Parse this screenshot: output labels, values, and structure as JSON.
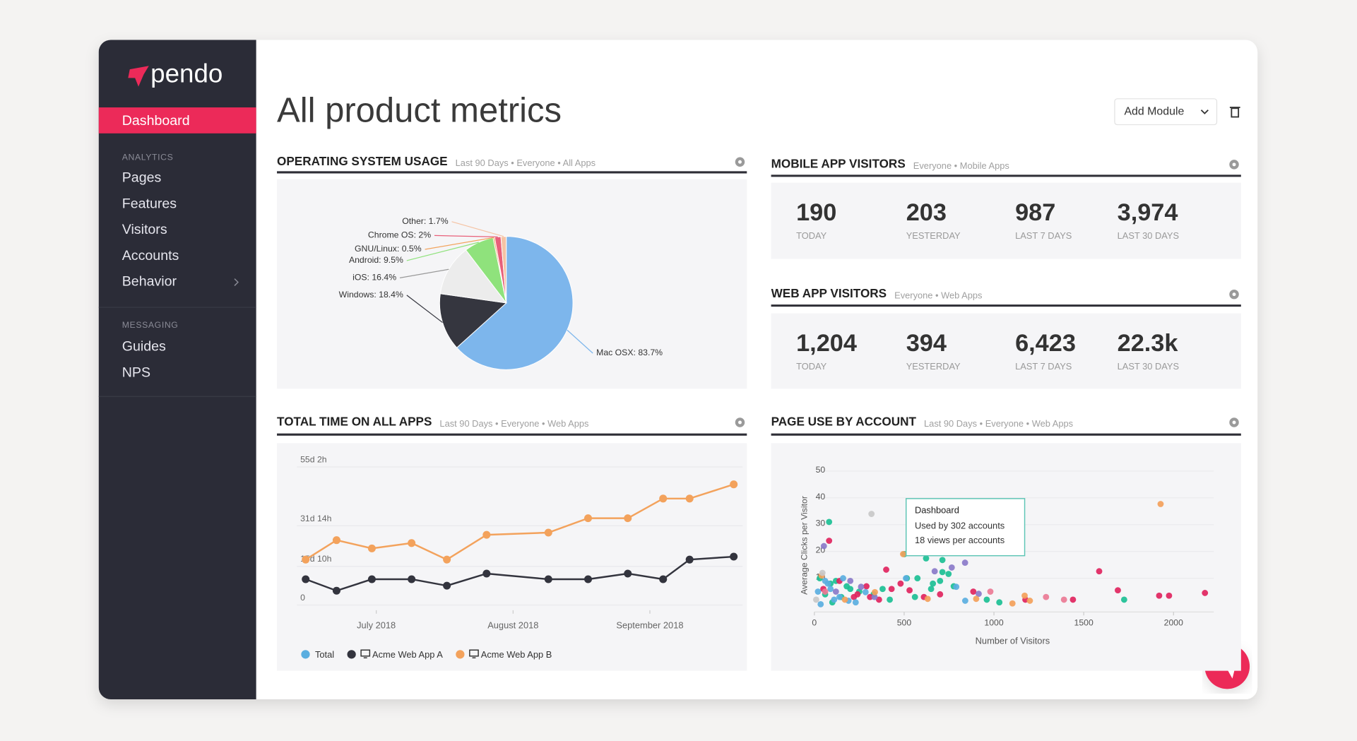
{
  "sidebar": {
    "logo": "pendo",
    "active": "Dashboard",
    "sections": [
      {
        "heading": "ANALYTICS",
        "items": [
          "Pages",
          "Features",
          "Visitors",
          "Accounts",
          "Behavior"
        ]
      },
      {
        "heading": "MESSAGING",
        "items": [
          "Guides",
          "NPS"
        ]
      }
    ]
  },
  "header": {
    "title": "All product metrics",
    "add_module": "Add Module"
  },
  "os_usage": {
    "title": "OPERATING SYSTEM USAGE",
    "subtitle": "Last 90 Days • Everyone • All Apps",
    "chart": {
      "type": "pie",
      "values": [
        83.7,
        18.4,
        16.4,
        9.5,
        0.5,
        2,
        1.7
      ],
      "value_labels": [
        "Mac OSX: 83.7%",
        "Windows: 18.4%",
        "iOS: 16.4%",
        "Android: 9.5%",
        "GNU/Linux: 0.5%",
        "Chrome OS: 2%",
        "Other: 1.7%"
      ],
      "colors": [
        "#7db6ec",
        "#35363f",
        "#ececec",
        "#8fe27c",
        "#f2a45e",
        "#e8607a",
        "#f5c3a4"
      ]
    }
  },
  "mobile_visitors": {
    "title": "MOBILE APP VISITORS",
    "subtitle": "Everyone • Mobile Apps",
    "stats": [
      {
        "value": "190",
        "label": "TODAY"
      },
      {
        "value": "203",
        "label": "YESTERDAY"
      },
      {
        "value": "987",
        "label": "LAST 7 DAYS"
      },
      {
        "value": "3,974",
        "label": "LAST 30 DAYS"
      }
    ]
  },
  "web_visitors": {
    "title": "WEB APP VISITORS",
    "subtitle": "Everyone • Web Apps",
    "stats": [
      {
        "value": "1,204",
        "label": "TODAY"
      },
      {
        "value": "394",
        "label": "YESTERDAY"
      },
      {
        "value": "6,423",
        "label": "LAST 7 DAYS"
      },
      {
        "value": "22.3k",
        "label": "LAST 30 DAYS"
      }
    ]
  },
  "total_time": {
    "title": "TOTAL TIME ON ALL APPS",
    "subtitle": "Last 90 Days • Everyone • Web Apps",
    "chart": {
      "type": "line",
      "x": [
        166,
        173,
        181,
        190,
        198,
        207,
        221,
        230,
        239,
        247,
        253,
        263
      ],
      "xlim": [
        164,
        265
      ],
      "xticks": [
        {
          "value": 182,
          "label": "July 2018"
        },
        {
          "value": 213,
          "label": "August 2018"
        },
        {
          "value": 244,
          "label": "September 2018"
        }
      ],
      "ylim": [
        0,
        1400
      ],
      "yticks": [
        0,
        {
          "value": 370,
          "label": "15d 10h"
        },
        {
          "value": 758,
          "label": "31d 14h"
        },
        {
          "value": 1322,
          "label": "55d 2h"
        }
      ],
      "grid": true,
      "series": [
        {
          "name": "Total",
          "color": "#5aaee0",
          "values": [
            null,
            null,
            null,
            null,
            null,
            null,
            null,
            null,
            null,
            null,
            null,
            null
          ]
        },
        {
          "name": "Acme Web App A",
          "color": "#33343e",
          "values": [
            247,
            137,
            247,
            247,
            185,
            301,
            247,
            247,
            301,
            247,
            435,
            463
          ]
        },
        {
          "name": "Acme Web App B",
          "color": "#f3a25c",
          "values": [
            435,
            621,
            542,
            593,
            435,
            672,
            693,
            831,
            831,
            1019,
            1019,
            1155
          ]
        }
      ]
    }
  },
  "page_use": {
    "title": "PAGE USE BY ACCOUNT",
    "subtitle": "Last 90 Days • Everyone • Web Apps",
    "chart": {
      "type": "scatter",
      "xlabel": "Number of Visitors",
      "ylabel": "Average Clicks per Visitor",
      "xlim": [
        0,
        2200
      ],
      "xticks": [
        0,
        500,
        1000,
        1500,
        2000
      ],
      "ylim": [
        0,
        52
      ],
      "yticks": [
        10,
        20,
        30,
        40,
        50
      ],
      "grid": true,
      "series": [
        {
          "color": "#1bbf94",
          "x": [
            82,
            713,
            713,
            747,
            622,
            501,
            574,
            515,
            660,
            776,
            960,
            1030,
            1725,
            60,
            90,
            120,
            150,
            200,
            250,
            330,
            420,
            380,
            30,
            100,
            180,
            560,
            650,
            700
          ],
          "values": [
            31,
            16.8,
            12.3,
            11.6,
            17.4,
            19,
            10,
            10,
            8,
            7,
            2,
            1,
            2,
            4,
            8,
            9,
            3,
            6,
            5,
            4,
            2,
            6,
            10,
            1,
            7,
            3,
            6,
            9
          ]
        },
        {
          "color": "#e0245e",
          "x": [
            82,
            1586,
            400,
            530,
            610,
            885,
            1175,
            1440,
            1690,
            1920,
            1975,
            2175,
            310,
            240,
            430,
            50,
            140,
            220,
            290,
            360,
            480,
            700
          ],
          "values": [
            24,
            12.6,
            13.2,
            5.5,
            3,
            5,
            2,
            2,
            5.5,
            3.5,
            3.5,
            4.5,
            3,
            4,
            6,
            6,
            9,
            3,
            7,
            2,
            8,
            4
          ]
        },
        {
          "color": "#5aaee0",
          "x": [
            140,
            190,
            285,
            510,
            790,
            35,
            90,
            840,
            60,
            110,
            160,
            230,
            20,
            75
          ],
          "values": [
            3,
            1.6,
            4.8,
            10,
            6.8,
            0.3,
            6,
            1.6,
            9,
            2,
            10,
            1,
            5,
            8
          ]
        },
        {
          "color": "#8a79c9",
          "x": [
            53,
            839,
            915,
            335,
            260,
            670,
            765,
            120,
            200
          ],
          "values": [
            22,
            15.8,
            4.2,
            3,
            6.8,
            12.6,
            14,
            5,
            9
          ]
        },
        {
          "color": "#f3a05a",
          "x": [
            1928,
            494,
            1171,
            1200,
            1103,
            901,
            631,
            337,
            170,
            40
          ],
          "values": [
            37.7,
            19,
            3.5,
            1.6,
            0.6,
            2.3,
            2.3,
            4.8,
            2,
            11
          ]
        },
        {
          "color": "#c8c8c8",
          "x": [
            318,
            10,
            45
          ],
          "values": [
            34,
            2,
            12
          ]
        },
        {
          "color": "#ea7a95",
          "x": [
            1390,
            1290,
            980,
            60
          ],
          "values": [
            2,
            3,
            5,
            5
          ]
        }
      ],
      "tooltip": {
        "title": "Dashboard",
        "lines": [
          "Used by 302 accounts",
          "18 views per accounts"
        ]
      }
    }
  }
}
